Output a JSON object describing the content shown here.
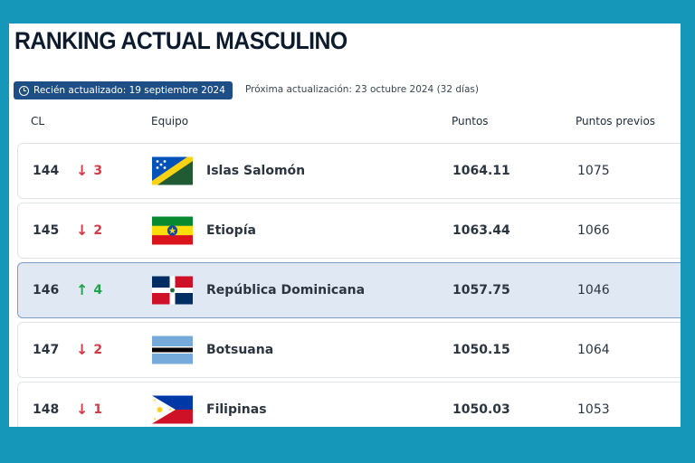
{
  "title": "RANKING ACTUAL MASCULINO",
  "updated": "Recién actualizado: 19 septiembre 2024",
  "next_update": "Próxima actualización: 23 octubre 2024 (32 días)",
  "columns": {
    "rank": "CL",
    "team": "Equipo",
    "points": "Puntos",
    "prev_points": "Puntos previos"
  },
  "rows": [
    {
      "rank": "144",
      "direction": "down",
      "arrow": "↓",
      "change": "3",
      "team": "Islas Salomón",
      "flag": "solomon-islands-flag",
      "points": "1064.11",
      "prev": "1075",
      "highlighted": false
    },
    {
      "rank": "145",
      "direction": "down",
      "arrow": "↓",
      "change": "2",
      "team": "Etiopía",
      "flag": "ethiopia-flag",
      "points": "1063.44",
      "prev": "1066",
      "highlighted": false
    },
    {
      "rank": "146",
      "direction": "up",
      "arrow": "↑",
      "change": "4",
      "team": "República Dominicana",
      "flag": "dominican-republic-flag",
      "points": "1057.75",
      "prev": "1046",
      "highlighted": true
    },
    {
      "rank": "147",
      "direction": "down",
      "arrow": "↓",
      "change": "2",
      "team": "Botsuana",
      "flag": "botswana-flag",
      "points": "1050.15",
      "prev": "1064",
      "highlighted": false
    },
    {
      "rank": "148",
      "direction": "down",
      "arrow": "↓",
      "change": "1",
      "team": "Filipinas",
      "flag": "philippines-flag",
      "points": "1050.03",
      "prev": "1053",
      "highlighted": false
    }
  ],
  "colors": {
    "background": "#1497b8",
    "badge": "#1d4e86",
    "down": "#d33a45",
    "up": "#21a34b",
    "highlight_row": "#dfe8f3"
  }
}
